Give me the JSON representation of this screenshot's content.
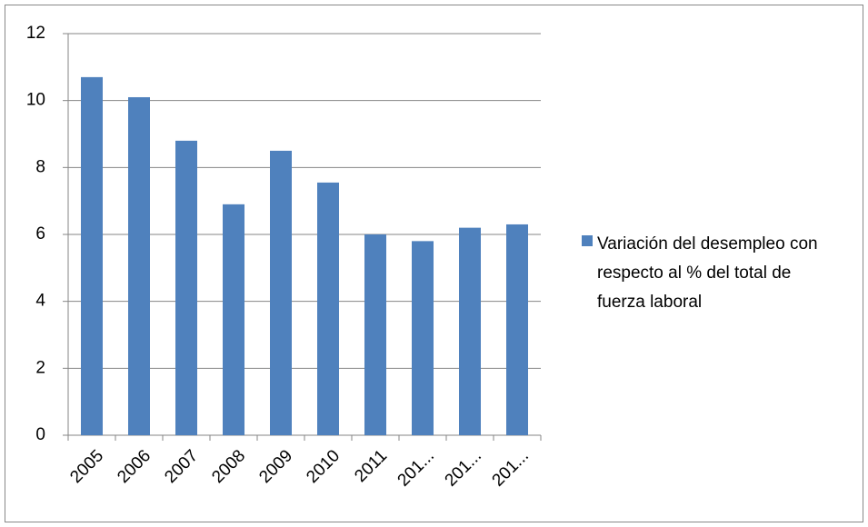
{
  "chart_data": {
    "type": "bar",
    "categories": [
      "2005",
      "2006",
      "2007",
      "2008",
      "2009",
      "2010",
      "2011",
      "201...",
      "201...",
      "201..."
    ],
    "series": [
      {
        "name": "Variación del desempleo con respecto al % del total de fuerza laboral",
        "color": "#4f81bd",
        "values": [
          10.7,
          10.1,
          8.8,
          6.9,
          8.5,
          7.55,
          6.0,
          5.8,
          6.2,
          6.3
        ]
      }
    ],
    "ylim": [
      0,
      12
    ],
    "yticks": [
      0,
      2,
      4,
      6,
      8,
      10,
      12
    ],
    "grid": true,
    "legend": "right"
  }
}
